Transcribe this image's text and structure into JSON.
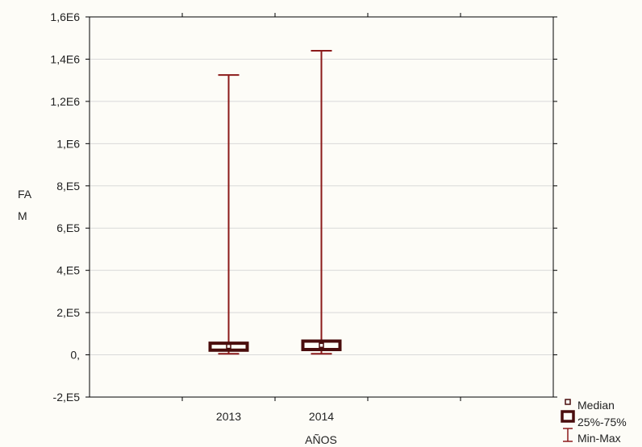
{
  "chart_data": {
    "type": "boxplot",
    "title": "",
    "xlabel": "AÑOS",
    "ylabel": [
      "FA",
      "M"
    ],
    "ylim": [
      -200000,
      1600000
    ],
    "grid": true,
    "categories": [
      "2013",
      "2014"
    ],
    "yticks": [
      {
        "value": -200000,
        "label": "-2,E5"
      },
      {
        "value": 0,
        "label": "0,"
      },
      {
        "value": 200000,
        "label": "2,E5"
      },
      {
        "value": 400000,
        "label": "4,E5"
      },
      {
        "value": 600000,
        "label": "6,E5"
      },
      {
        "value": 800000,
        "label": "8,E5"
      },
      {
        "value": 1000000,
        "label": "1,E6"
      },
      {
        "value": 1200000,
        "label": "1,2E6"
      },
      {
        "value": 1400000,
        "label": "1,4E6"
      },
      {
        "value": 1600000,
        "label": "1,6E6"
      }
    ],
    "boxes": [
      {
        "category": "2013",
        "min": 5000,
        "q1": 22000,
        "median": 40000,
        "q3": 55000,
        "max": 1325000
      },
      {
        "category": "2014",
        "min": 5000,
        "q1": 25000,
        "median": 45000,
        "q3": 65000,
        "max": 1440000
      }
    ],
    "legend": {
      "position": "bottom-right",
      "items": [
        {
          "symbol": "median",
          "label": "Median"
        },
        {
          "symbol": "box",
          "label": "25%-75%"
        },
        {
          "symbol": "whisker",
          "label": "Min-Max"
        }
      ]
    },
    "colors": {
      "whisker": "#8b1a1a",
      "box": "#4a0d0d",
      "grid": "#d9d9d9",
      "axis": "#000000"
    }
  }
}
